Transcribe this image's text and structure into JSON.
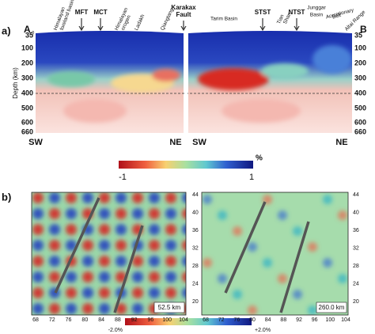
{
  "panel_a": {
    "label": "a)",
    "start": "A",
    "start_sub": "0",
    "end": "B",
    "axis_title": "Depth (km)",
    "depth_left": [
      "35",
      "100",
      "200",
      "300",
      "400",
      "500",
      "600",
      "660"
    ],
    "depth_right": [
      "35",
      "100",
      "200",
      "300",
      "400",
      "500",
      "600",
      "660"
    ],
    "top_labels": [
      [
        "Himalayan",
        "foreland basin"
      ],
      [
        "MFT"
      ],
      [
        "MCT"
      ],
      [
        "Himalayan",
        "orogen"
      ],
      [
        "Ladakh"
      ],
      [
        "Qiangtang"
      ],
      [
        "Karakax",
        "Fault"
      ],
      [
        "Tarim Basin"
      ],
      [
        "STST"
      ],
      [
        "Tian",
        "Shan"
      ],
      [
        "NTST"
      ],
      [
        "Junggar",
        "Basin"
      ],
      [
        "Accretionary",
        "Belt"
      ],
      [
        "Altai Range"
      ]
    ],
    "directions": [
      "SW",
      "NE",
      "SW",
      "NE"
    ]
  },
  "colorbar_a": {
    "unit": "%",
    "min": "-1",
    "max": "1"
  },
  "panel_b": {
    "label": "b)",
    "maps": [
      {
        "depth": "52.5 km",
        "x_ticks": [
          "68",
          "72",
          "76",
          "80",
          "84",
          "88",
          "92",
          "96",
          "100",
          "104"
        ],
        "y_ticks": [
          "44",
          "40",
          "36",
          "32",
          "28",
          "24",
          "20"
        ]
      },
      {
        "depth": "260.0 km",
        "x_ticks": [
          "68",
          "72",
          "76",
          "80",
          "84",
          "88",
          "92",
          "96",
          "100",
          "104"
        ],
        "y_ticks": [
          "44",
          "40",
          "36",
          "32",
          "28",
          "24",
          "20"
        ]
      }
    ],
    "colorbar": {
      "min": "-2.0%",
      "max": "+2.0%"
    }
  }
}
